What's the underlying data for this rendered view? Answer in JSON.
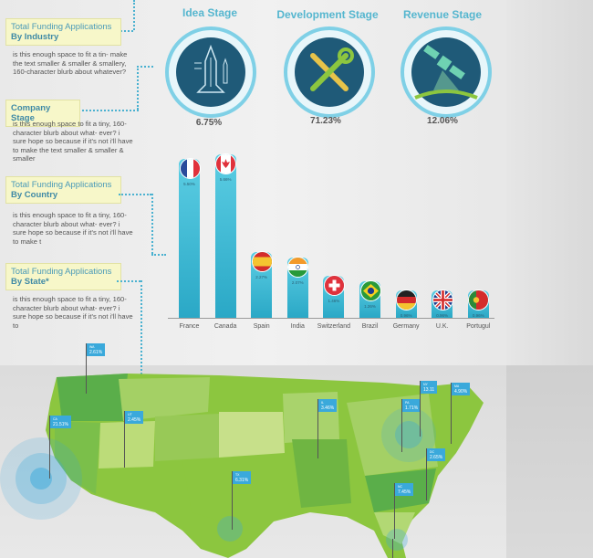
{
  "sections": {
    "industry": {
      "title1": "Total Funding Applications",
      "title2": "By Industry",
      "blurb": "is this enough space to fit a tin- make the text smaller & smaller & smallery, 160-character blurb about whatever?"
    },
    "company": {
      "title": "Company Stage",
      "blurb": "is this enough space to fit a tiny, 160-character blurb about what- ever? i sure hope so because if it's not i'll have to make the text smaller & smaller & smaller"
    },
    "country": {
      "title1": "Total Funding Applications",
      "title2": "By Country",
      "blurb": "is this enough space to fit a tiny, 160-character blurb about what- ever? i sure hope so because if it's not i'll have to make t"
    },
    "state": {
      "title1": "Total Funding Applications",
      "title2": "By State*",
      "blurb": "is this enough space to fit a tiny, 160-character blurb about what- ever? i sure hope so because if it's not i'll have to"
    }
  },
  "stages": [
    {
      "title": "Idea Stage",
      "pct": "6.75%",
      "icon": "space-shuttle-icon"
    },
    {
      "title": "Development Stage",
      "pct": "71.23%",
      "icon": "wrench-screwdriver-icon"
    },
    {
      "title": "Revenue Stage",
      "pct": "12.06%",
      "icon": "satellite-icon"
    }
  ],
  "chart_data": {
    "type": "bar",
    "categories": [
      "France",
      "Canada",
      "Spain",
      "India",
      "Switzerland",
      "Brazil",
      "Germany",
      "U.K.",
      "Portugul"
    ],
    "values": [
      5.5,
      5.66,
      2.27,
      2.07,
      1.46,
      1.26,
      0.96,
      0.96,
      0.96
    ],
    "value_labels": [
      "5.50%",
      "5.66%",
      "2.27%",
      "2.07%",
      "1.46%",
      "1.26%",
      "0.96%",
      "0.96%",
      "0.96%"
    ],
    "flags": [
      "flag-france-icon",
      "flag-canada-icon",
      "flag-spain-icon",
      "flag-india-icon",
      "flag-switzerland-icon",
      "flag-brazil-icon",
      "flag-germany-icon",
      "flag-uk-icon",
      "flag-portugal-icon"
    ],
    "title": "",
    "xlabel": "",
    "ylabel": "",
    "ylim": [
      0,
      6
    ]
  },
  "map_pins": [
    {
      "code": "WA",
      "pct": "2.61%"
    },
    {
      "code": "CA",
      "pct": "21.51%"
    },
    {
      "code": "UT",
      "pct": "2.45%"
    },
    {
      "code": "TX",
      "pct": "6.31%"
    },
    {
      "code": "IL",
      "pct": "3.46%"
    },
    {
      "code": "PA",
      "pct": "1.71%"
    },
    {
      "code": "NY",
      "pct": "13.11"
    },
    {
      "code": "MA",
      "pct": "4.90%"
    },
    {
      "code": "DC",
      "pct": "2.65%"
    },
    {
      "code": "NC",
      "pct": "7.45%"
    },
    {
      "code": "FL",
      "pct": ""
    }
  ],
  "colors": {
    "accent": "#55b6cf",
    "bar_top": "#5bcde3",
    "bar_bottom": "#2aa8c6",
    "map_green": "#8cc63f",
    "pin": "#3aa9db"
  }
}
